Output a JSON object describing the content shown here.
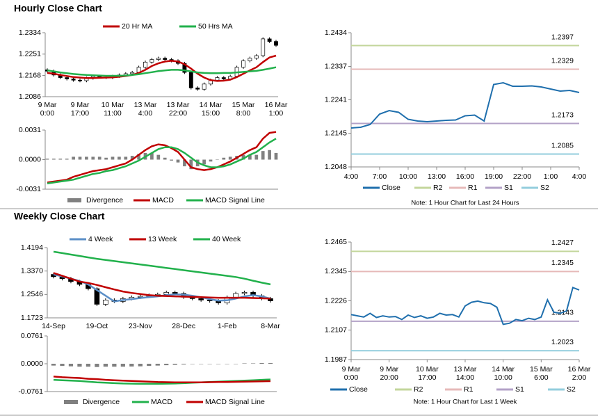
{
  "chart_data": [
    {
      "type": "candlestick",
      "title": "Hourly Close Chart",
      "xlabels": [
        [
          "9 Mar",
          "0:00"
        ],
        [
          "9 Mar",
          "17:00"
        ],
        [
          "10 Mar",
          "11:00"
        ],
        [
          "13 Mar",
          "4:00"
        ],
        [
          "13 Mar",
          "22:00"
        ],
        [
          "14 Mar",
          "15:00"
        ],
        [
          "15 Mar",
          "8:00"
        ],
        [
          "16 Mar",
          "1:00"
        ]
      ],
      "ylim": [
        1.2086,
        1.2334
      ],
      "yticks": [
        1.2086,
        1.2168,
        1.2251,
        1.2334
      ],
      "legend": "top",
      "ohlc": [
        [
          1.219,
          1.2196,
          1.2179,
          1.2185
        ],
        [
          1.2185,
          1.2191,
          1.2164,
          1.217
        ],
        [
          1.217,
          1.2176,
          1.2154,
          1.216
        ],
        [
          1.216,
          1.2166,
          1.2149,
          1.2155
        ],
        [
          1.2155,
          1.2161,
          1.2144,
          1.215
        ],
        [
          1.215,
          1.2156,
          1.2142,
          1.2148
        ],
        [
          1.2148,
          1.2164,
          1.2142,
          1.2158
        ],
        [
          1.2158,
          1.2171,
          1.2152,
          1.2165
        ],
        [
          1.2165,
          1.2171,
          1.2156,
          1.2162
        ],
        [
          1.2162,
          1.2168,
          1.2154,
          1.216
        ],
        [
          1.216,
          1.2171,
          1.2154,
          1.2165
        ],
        [
          1.2165,
          1.2176,
          1.2159,
          1.217
        ],
        [
          1.217,
          1.2181,
          1.2164,
          1.2175
        ],
        [
          1.2175,
          1.2186,
          1.2169,
          1.218
        ],
        [
          1.218,
          1.2206,
          1.2174,
          1.22
        ],
        [
          1.22,
          1.2226,
          1.2194,
          1.222
        ],
        [
          1.222,
          1.2236,
          1.2214,
          1.223
        ],
        [
          1.223,
          1.2241,
          1.2224,
          1.2235
        ],
        [
          1.2235,
          1.2241,
          1.2224,
          1.223
        ],
        [
          1.223,
          1.2236,
          1.2219,
          1.2225
        ],
        [
          1.2225,
          1.2231,
          1.2209,
          1.2215
        ],
        [
          1.2215,
          1.2221,
          1.2174,
          1.218
        ],
        [
          1.218,
          1.2186,
          1.2114,
          1.212
        ],
        [
          1.212,
          1.2126,
          1.2109,
          1.2115
        ],
        [
          1.2115,
          1.2141,
          1.2109,
          1.2135
        ],
        [
          1.2135,
          1.2156,
          1.2129,
          1.215
        ],
        [
          1.215,
          1.2166,
          1.2144,
          1.216
        ],
        [
          1.216,
          1.2166,
          1.2149,
          1.2155
        ],
        [
          1.2155,
          1.2171,
          1.2149,
          1.2165
        ],
        [
          1.2165,
          1.2206,
          1.2159,
          1.22
        ],
        [
          1.22,
          1.2231,
          1.2194,
          1.2225
        ],
        [
          1.2225,
          1.2241,
          1.2219,
          1.2235
        ],
        [
          1.2235,
          1.2251,
          1.2229,
          1.2245
        ],
        [
          1.2245,
          1.2316,
          1.2239,
          1.231
        ],
        [
          1.231,
          1.2316,
          1.2294,
          1.23
        ],
        [
          1.23,
          1.2306,
          1.2279,
          1.2285
        ]
      ],
      "series": [
        {
          "name": "20 Hr MA",
          "type": "line",
          "color": "#c00000",
          "values": [
            1.2178,
            1.2175,
            1.217,
            1.2166,
            1.2162,
            1.216,
            1.2158,
            1.2158,
            1.2159,
            1.216,
            1.2161,
            1.2163,
            1.2166,
            1.217,
            1.2178,
            1.219,
            1.2205,
            1.2215,
            1.2222,
            1.2225,
            1.2222,
            1.2212,
            1.2195,
            1.2175,
            1.216,
            1.215,
            1.2147,
            1.2148,
            1.2152,
            1.2162,
            1.2175,
            1.2188,
            1.22,
            1.222,
            1.2238,
            1.2245
          ]
        },
        {
          "name": "50 Hrs MA",
          "type": "line",
          "color": "#22b14c",
          "values": [
            1.2188,
            1.2184,
            1.218,
            1.2177,
            1.2174,
            1.2172,
            1.217,
            1.2169,
            1.2168,
            1.2167,
            1.2167,
            1.2167,
            1.2168,
            1.217,
            1.2173,
            1.2177,
            1.2181,
            1.2185,
            1.2188,
            1.219,
            1.219,
            1.2188,
            1.2184,
            1.218,
            1.2178,
            1.2177,
            1.2177,
            1.2178,
            1.2178,
            1.218,
            1.2182,
            1.2184,
            1.2186,
            1.219,
            1.2195,
            1.22
          ]
        }
      ]
    },
    {
      "type": "macd",
      "ylim": [
        -0.0031,
        0.0031
      ],
      "yticks": [
        -0.0031,
        {
          "value": 0,
          "label": "0.0000"
        },
        0.0031
      ],
      "legend": "bottom",
      "series": [
        {
          "name": "Divergence",
          "type": "bar",
          "color": "#808080",
          "values": [
            0.0001,
            0.0001,
            0.0001,
            0.0001,
            0.0003,
            0.0003,
            0.0003,
            0.0003,
            0.0003,
            0.0002,
            0.0003,
            0.0003,
            0.0003,
            0.0004,
            0.0006,
            0.0007,
            0.0007,
            0.0005,
            0.0002,
            -0.0001,
            -0.0003,
            -0.0007,
            -0.001,
            -0.0007,
            -0.0005,
            -0.0002,
            0,
            0.0002,
            0.0003,
            0.0004,
            0.0005,
            0.0005,
            0.0005,
            0.0009,
            0.001,
            0.0007
          ]
        },
        {
          "name": "MACD",
          "type": "line",
          "color": "#c00000",
          "values": [
            -0.0024,
            -0.0023,
            -0.0022,
            -0.0021,
            -0.0018,
            -0.0016,
            -0.0014,
            -0.0012,
            -0.0011,
            -0.001,
            -0.0008,
            -0.0006,
            -0.0004,
            0,
            0.0005,
            0.001,
            0.0014,
            0.0016,
            0.0015,
            0.0012,
            0.0008,
            0,
            -0.0008,
            -0.001,
            -0.0011,
            -0.001,
            -0.0008,
            -0.0005,
            -0.0002,
            0.0002,
            0.0006,
            0.001,
            0.0013,
            0.0022,
            0.0028,
            0.0029
          ]
        },
        {
          "name": "MACD Signal Line",
          "type": "line",
          "color": "#22b14c",
          "values": [
            -0.0025,
            -0.0024,
            -0.0023,
            -0.0022,
            -0.0021,
            -0.0019,
            -0.0017,
            -0.0015,
            -0.0014,
            -0.0012,
            -0.0011,
            -0.0009,
            -0.0007,
            -0.0004,
            -0.0001,
            0.0003,
            0.0007,
            0.0011,
            0.0013,
            0.0013,
            0.0011,
            0.0007,
            0.0002,
            -0.0003,
            -0.0006,
            -0.0008,
            -0.0008,
            -0.0007,
            -0.0005,
            -0.0002,
            0.0001,
            0.0005,
            0.0008,
            0.0013,
            0.0018,
            0.0022
          ]
        }
      ]
    },
    {
      "type": "line",
      "xlabels": [
        "4:00",
        "7:00",
        "10:00",
        "13:00",
        "16:00",
        "19:00",
        "22:00",
        "1:00",
        "4:00"
      ],
      "ylim": [
        1.2048,
        1.2434
      ],
      "yticks": [
        1.2048,
        1.2145,
        1.2241,
        1.2337,
        1.2434
      ],
      "legend": "bottom",
      "note": "Note: 1 Hour Chart for Last 24 Hours",
      "series": [
        {
          "name": "Close",
          "type": "line",
          "color": "#1f6fad",
          "values": [
            1.216,
            1.2162,
            1.217,
            1.22,
            1.221,
            1.2205,
            1.2185,
            1.218,
            1.2178,
            1.218,
            1.2182,
            1.2183,
            1.2195,
            1.2197,
            1.218,
            1.2285,
            1.229,
            1.228,
            1.228,
            1.2281,
            1.2278,
            1.2272,
            1.2266,
            1.2268,
            1.2262
          ]
        }
      ],
      "levels": [
        {
          "name": "R2",
          "color": "#c3d69b",
          "value": 1.2397
        },
        {
          "name": "R1",
          "color": "#e6b9b8",
          "value": 1.2329
        },
        {
          "name": "S1",
          "color": "#b3a2c7",
          "value": 1.2173
        },
        {
          "name": "S2",
          "color": "#93cddd",
          "value": 1.2085
        }
      ]
    },
    {
      "type": "candlestick",
      "title": "Weekly Close Chart",
      "xlabels": [
        "14-Sep",
        "19-Oct",
        "23-Nov",
        "28-Dec",
        "1-Feb",
        "8-Mar"
      ],
      "ylim": [
        1.1723,
        1.4194
      ],
      "yticks": [
        1.1723,
        1.2546,
        {
          "value": 1.337,
          "label": "1.3370"
        },
        1.4194
      ],
      "legend": "top",
      "ohlc": [
        [
          1.325,
          1.331,
          1.311,
          1.317
        ],
        [
          1.317,
          1.323,
          1.304,
          1.31
        ],
        [
          1.31,
          1.316,
          1.294,
          1.3
        ],
        [
          1.3,
          1.306,
          1.284,
          1.29
        ],
        [
          1.29,
          1.296,
          1.269,
          1.275
        ],
        [
          1.275,
          1.281,
          1.214,
          1.22
        ],
        [
          1.22,
          1.241,
          1.214,
          1.235
        ],
        [
          1.235,
          1.241,
          1.224,
          1.23
        ],
        [
          1.23,
          1.246,
          1.224,
          1.24
        ],
        [
          1.24,
          1.251,
          1.234,
          1.245
        ],
        [
          1.245,
          1.254,
          1.239,
          1.248
        ],
        [
          1.248,
          1.258,
          1.242,
          1.252
        ],
        [
          1.252,
          1.261,
          1.246,
          1.255
        ],
        [
          1.255,
          1.268,
          1.249,
          1.262
        ],
        [
          1.262,
          1.268,
          1.252,
          1.258
        ],
        [
          1.258,
          1.264,
          1.239,
          1.245
        ],
        [
          1.245,
          1.251,
          1.234,
          1.24
        ],
        [
          1.24,
          1.246,
          1.229,
          1.235
        ],
        [
          1.235,
          1.241,
          1.226,
          1.232
        ],
        [
          1.232,
          1.238,
          1.219,
          1.225
        ],
        [
          1.225,
          1.251,
          1.219,
          1.245
        ],
        [
          1.245,
          1.264,
          1.239,
          1.258
        ],
        [
          1.258,
          1.268,
          1.252,
          1.262
        ],
        [
          1.262,
          1.268,
          1.244,
          1.25
        ],
        [
          1.25,
          1.256,
          1.234,
          1.24
        ],
        [
          1.24,
          1.246,
          1.226,
          1.232
        ]
      ],
      "series": [
        {
          "name": "4 Week",
          "type": "line",
          "color": "#5b8fc7",
          "values": [
            1.325,
            1.318,
            1.31,
            1.302,
            1.29,
            1.27,
            1.25,
            1.23,
            1.235,
            1.238,
            1.242,
            1.245,
            1.248,
            1.252,
            1.255,
            1.254,
            1.25,
            1.245,
            1.238,
            1.233,
            1.234,
            1.24,
            1.248,
            1.252,
            1.248,
            1.24
          ]
        },
        {
          "name": "13 Week",
          "type": "line",
          "color": "#c00000",
          "values": [
            1.33,
            1.32,
            1.31,
            1.3,
            1.295,
            1.288,
            1.28,
            1.272,
            1.265,
            1.26,
            1.256,
            1.252,
            1.25,
            1.249,
            1.248,
            1.247,
            1.246,
            1.245,
            1.244,
            1.243,
            1.243,
            1.243,
            1.243,
            1.242,
            1.241,
            1.24
          ]
        },
        {
          "name": "40 Week",
          "type": "line",
          "color": "#22b14c",
          "values": [
            1.405,
            1.4,
            1.395,
            1.39,
            1.385,
            1.38,
            1.376,
            1.372,
            1.368,
            1.364,
            1.36,
            1.356,
            1.352,
            1.348,
            1.344,
            1.34,
            1.336,
            1.332,
            1.328,
            1.324,
            1.32,
            1.316,
            1.31,
            1.303,
            1.296,
            1.29
          ]
        }
      ]
    },
    {
      "type": "macd",
      "ylim": [
        -0.0761,
        0.0761
      ],
      "yticks": [
        -0.0761,
        {
          "value": 0,
          "label": "0.0000"
        },
        0.0761
      ],
      "legend": "bottom",
      "series": [
        {
          "name": "Divergence",
          "type": "bar",
          "color": "#808080",
          "values": [
            -0.005,
            -0.006,
            -0.007,
            -0.008,
            -0.008,
            -0.009,
            -0.008,
            -0.008,
            -0.008,
            -0.0075,
            -0.007,
            -0.006,
            -0.005,
            -0.004,
            -0.003,
            -0.002,
            -0.001,
            -0.001,
            -0.001,
            -0.001,
            -0.001,
            0,
            0.001,
            0.001,
            0.002,
            0.002
          ]
        },
        {
          "name": "MACD",
          "type": "line",
          "color": "#22b14c",
          "values": [
            -0.044,
            -0.045,
            -0.046,
            -0.047,
            -0.049,
            -0.051,
            -0.052,
            -0.053,
            -0.054,
            -0.0545,
            -0.055,
            -0.055,
            -0.055,
            -0.0545,
            -0.054,
            -0.053,
            -0.052,
            -0.051,
            -0.05,
            -0.049,
            -0.048,
            -0.047,
            -0.046,
            -0.045,
            -0.044,
            -0.043
          ]
        },
        {
          "name": "MACD Signal Line",
          "type": "line",
          "color": "#c00000",
          "values": [
            -0.035,
            -0.037,
            -0.038,
            -0.039,
            -0.041,
            -0.042,
            -0.044,
            -0.045,
            -0.046,
            -0.047,
            -0.048,
            -0.049,
            -0.05,
            -0.0505,
            -0.051,
            -0.051,
            -0.051,
            -0.051,
            -0.0505,
            -0.05,
            -0.05,
            -0.0495,
            -0.049,
            -0.0485,
            -0.048,
            -0.0475
          ]
        }
      ]
    },
    {
      "type": "line",
      "xlabels": [
        [
          "9 Mar",
          "0:00"
        ],
        [
          "9 Mar",
          "20:00"
        ],
        [
          "10 Mar",
          "17:00"
        ],
        [
          "13 Mar",
          "14:00"
        ],
        [
          "14 Mar",
          "10:00"
        ],
        [
          "15 Mar",
          "6:00"
        ],
        [
          "16 Mar",
          "2:00"
        ]
      ],
      "ylim": [
        1.1987,
        1.2465
      ],
      "yticks": [
        1.1987,
        1.2107,
        1.2226,
        1.2345,
        1.2465
      ],
      "legend": "bottom",
      "note": "Note: 1 Hour Chart for Last 1 Week",
      "series": [
        {
          "name": "Close",
          "type": "line",
          "color": "#1f6fad",
          "values": [
            1.217,
            1.2165,
            1.216,
            1.2175,
            1.2158,
            1.2165,
            1.216,
            1.2162,
            1.215,
            1.2168,
            1.2158,
            1.2165,
            1.2155,
            1.216,
            1.2175,
            1.2168,
            1.217,
            1.216,
            1.2205,
            1.222,
            1.2225,
            1.2218,
            1.2215,
            1.22,
            1.213,
            1.2135,
            1.215,
            1.2145,
            1.2155,
            1.215,
            1.216,
            1.223,
            1.218,
            1.2175,
            1.2185,
            1.228,
            1.227
          ]
        }
      ],
      "levels": [
        {
          "name": "R2",
          "color": "#c3d69b",
          "value": 1.2427
        },
        {
          "name": "R1",
          "color": "#e6b9b8",
          "value": 1.2345
        },
        {
          "name": "S1",
          "color": "#b3a2c7",
          "value": 1.2143
        },
        {
          "name": "S2",
          "color": "#93cddd",
          "value": 1.2023
        }
      ]
    }
  ]
}
